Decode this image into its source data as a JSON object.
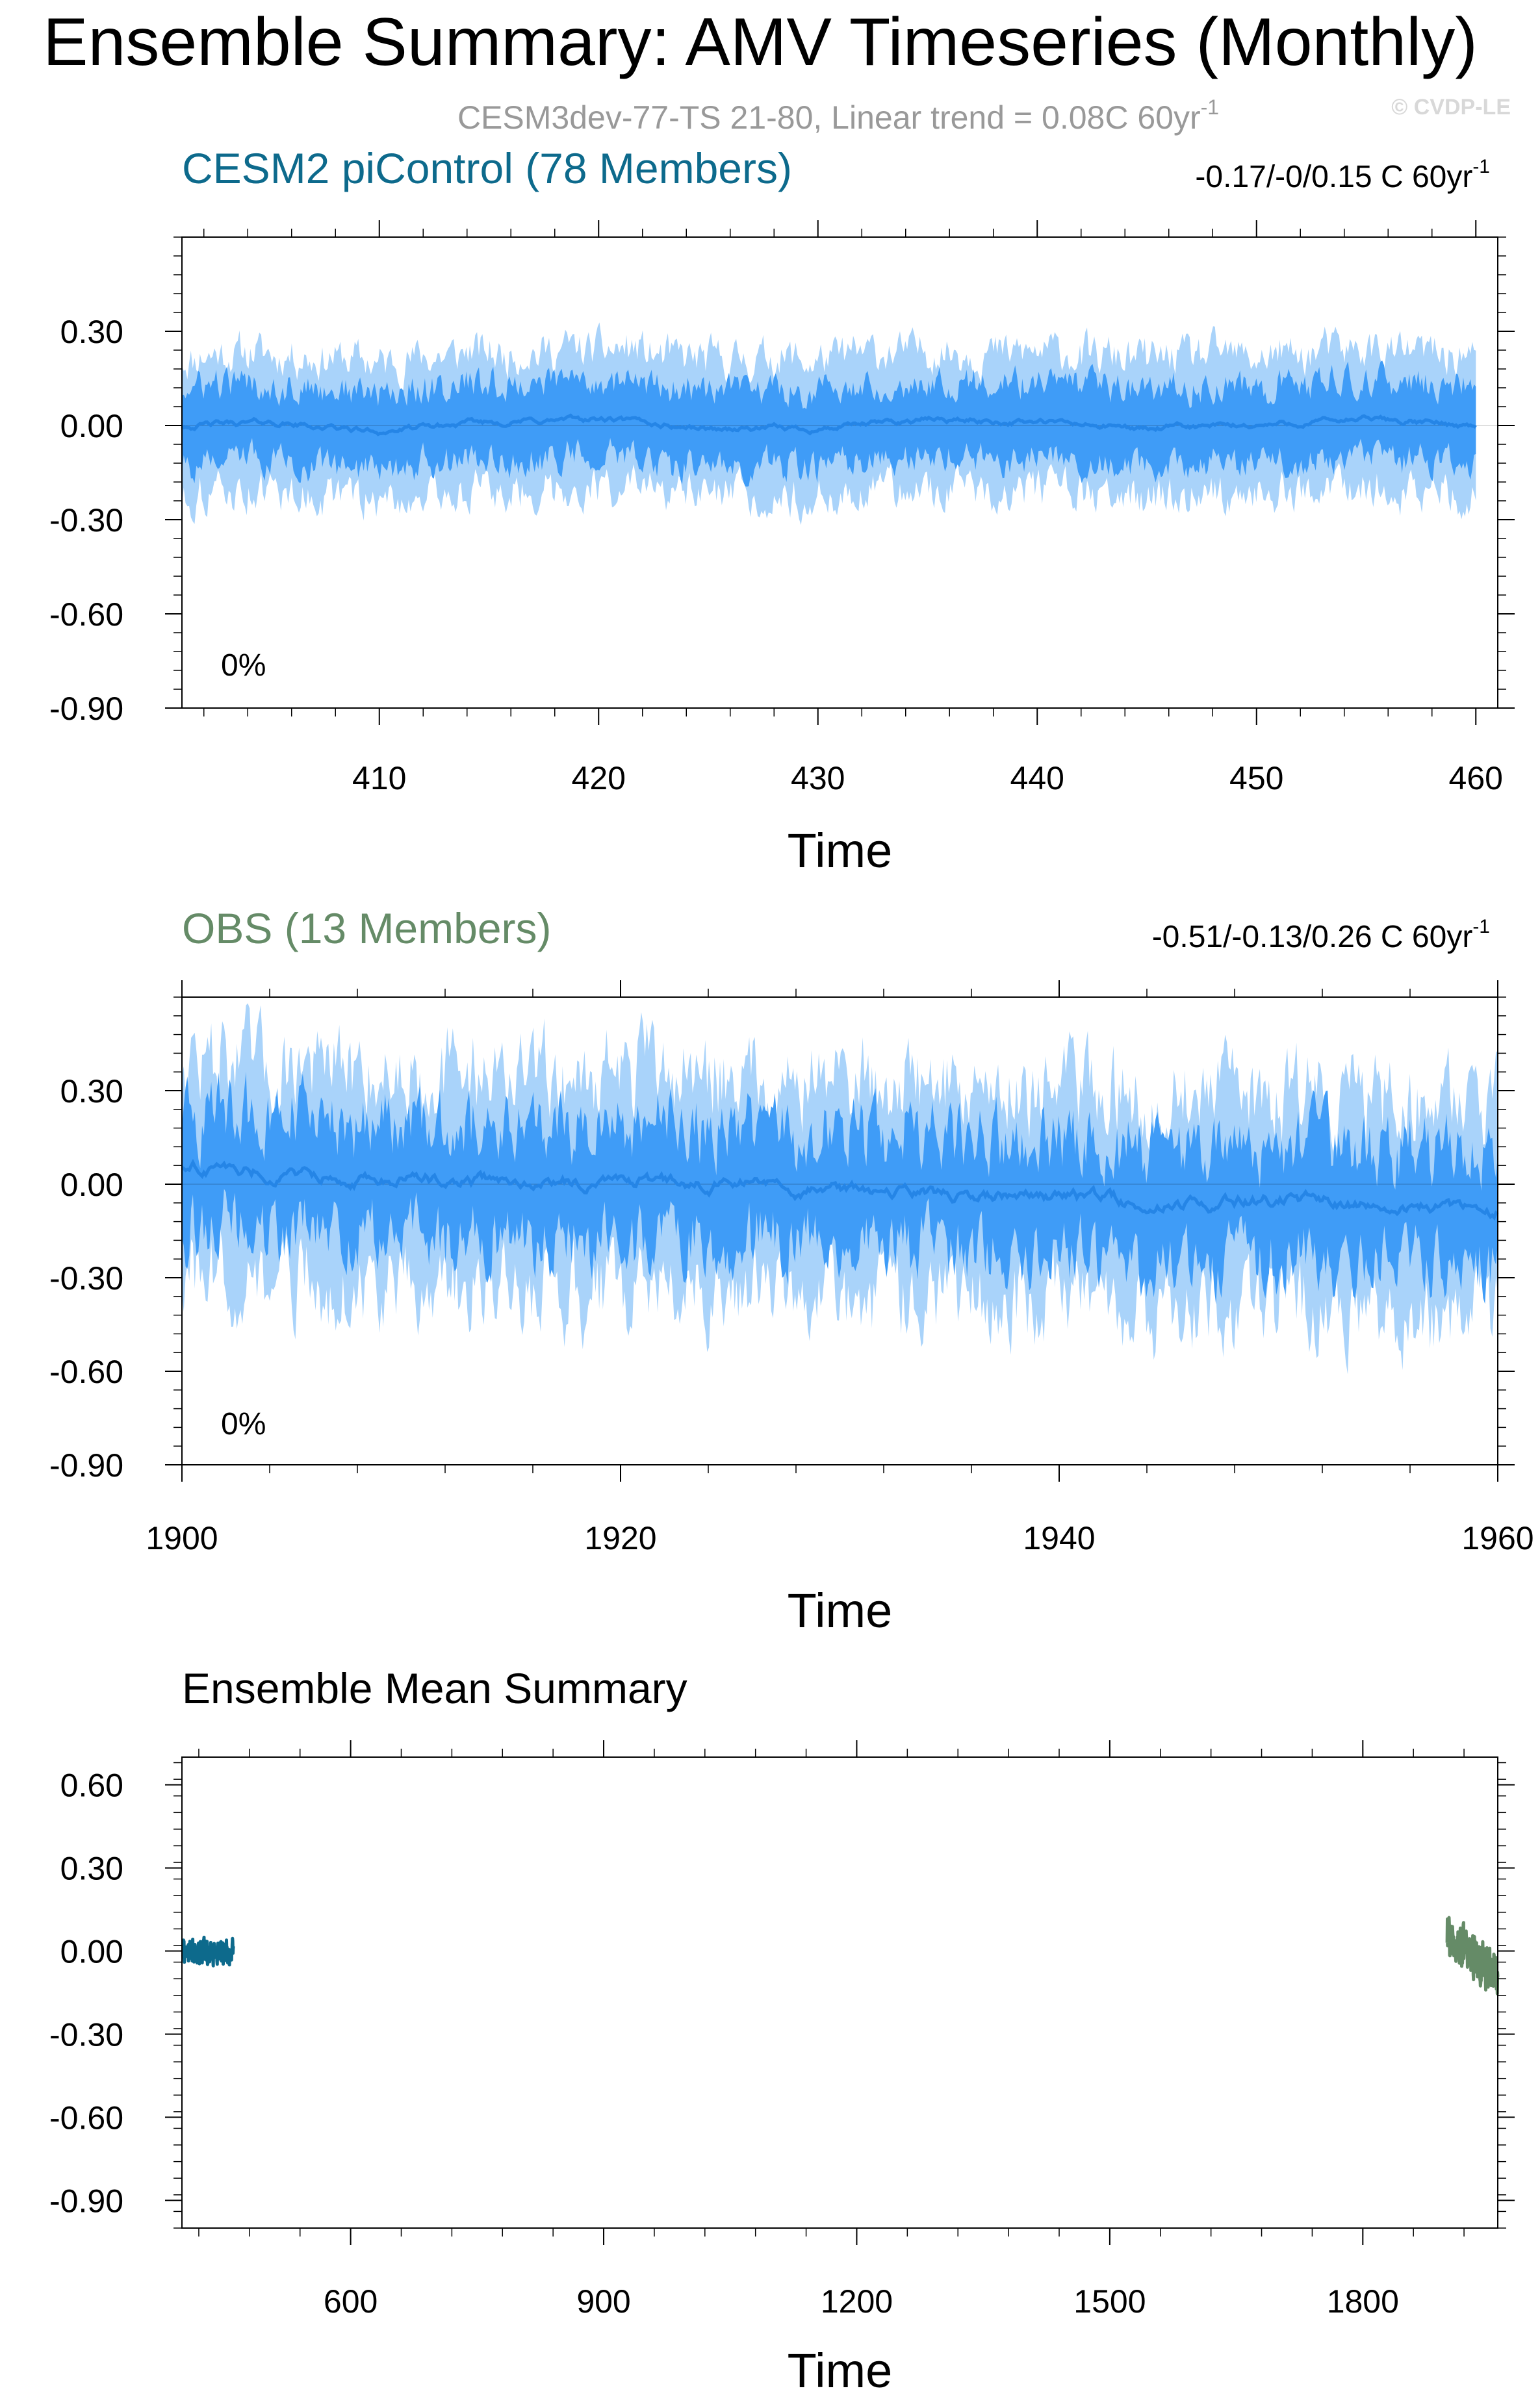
{
  "figure": {
    "title": "Ensemble Summary: AMV Timeseries (Monthly)",
    "subtitle": "CESM3dev-77-TS 21-80, Linear trend = 0.08C 60yr",
    "subtitle_sup": "-1",
    "watermark": "© CVDP-LE"
  },
  "colors": {
    "spread_outer": "#a9d3fa",
    "spread_inner": "#3f9cf7",
    "mean_line": "#2585e6",
    "picontrol_title": "#0d6a8c",
    "obs_title": "#658b67",
    "picontrol_mean": "#0d6a8c",
    "obs_mean": "#658b67",
    "axis": "#000000",
    "subtitle": "#999999",
    "watermark": "#d8d8d8"
  },
  "chart_data": [
    {
      "type": "area",
      "title": "CESM2 piControl (78 Members)",
      "trend_text": "-0.17/-0/0.15 C 60yr",
      "trend_sup": "-1",
      "percent_label": "0%",
      "xlabel": "Time",
      "ylabel": "",
      "xlim": [
        401,
        461
      ],
      "ylim": [
        -0.9,
        0.6
      ],
      "xticks": [
        410,
        420,
        430,
        440,
        450,
        460
      ],
      "xtick_labels": [
        "410",
        "420",
        "430",
        "440",
        "450",
        "460"
      ],
      "yticks": [
        0.3,
        0.0,
        -0.3,
        -0.6,
        -0.9
      ],
      "ytick_labels": [
        "0.30",
        "0.00",
        "-0.30",
        "-0.60",
        "-0.90"
      ],
      "series": [
        {
          "name": "",
          "role": "ensemble-mean",
          "x": [
            401,
            405,
            410,
            415,
            420,
            425,
            430,
            435,
            440,
            445,
            450,
            455,
            460
          ],
          "values": [
            0.0,
            0.01,
            -0.02,
            0.01,
            0.02,
            -0.01,
            -0.01,
            0.02,
            0.01,
            -0.01,
            0.0,
            0.02,
            0.0
          ]
        },
        {
          "name": "",
          "role": "inner-spread-upper",
          "x": [
            401,
            461
          ],
          "values": [
            0.12,
            0.12
          ]
        },
        {
          "name": "",
          "role": "inner-spread-lower",
          "x": [
            401,
            461
          ],
          "values": [
            -0.12,
            -0.12
          ]
        },
        {
          "name": "",
          "role": "outer-spread-upper",
          "x": [
            401,
            461
          ],
          "values": [
            0.22,
            0.22
          ]
        },
        {
          "name": "",
          "role": "outer-spread-lower",
          "x": [
            401,
            461
          ],
          "values": [
            -0.22,
            -0.22
          ]
        }
      ]
    },
    {
      "type": "area",
      "title": "OBS (13 Members)",
      "trend_text": "-0.51/-0.13/0.26 C 60yr",
      "trend_sup": "-1",
      "percent_label": "0%",
      "xlabel": "Time",
      "ylabel": "",
      "xlim": [
        1900,
        1960
      ],
      "ylim": [
        -0.9,
        0.6
      ],
      "xticks": [
        1900,
        1920,
        1940,
        1960
      ],
      "xtick_labels": [
        "1900",
        "1920",
        "1940",
        "1960"
      ],
      "yticks": [
        0.3,
        0.0,
        -0.3,
        -0.6,
        -0.9
      ],
      "ytick_labels": [
        "0.30",
        "0.00",
        "-0.30",
        "-0.60",
        "-0.90"
      ],
      "series": [
        {
          "name": "",
          "role": "ensemble-mean",
          "x": [
            1900,
            1905,
            1910,
            1915,
            1920,
            1925,
            1930,
            1935,
            1940,
            1945,
            1950,
            1955,
            1960
          ],
          "values": [
            0.06,
            0.03,
            0.02,
            0.0,
            0.02,
            0.0,
            -0.02,
            -0.03,
            -0.04,
            -0.06,
            -0.05,
            -0.07,
            -0.09
          ]
        },
        {
          "name": "",
          "role": "inner-spread-half-width",
          "x": [
            1900,
            1960
          ],
          "values": [
            0.18,
            0.18
          ]
        },
        {
          "name": "",
          "role": "outer-spread-half-width",
          "x": [
            1900,
            1960
          ],
          "values": [
            0.35,
            0.35
          ]
        }
      ]
    },
    {
      "type": "line",
      "title": "Ensemble Mean Summary",
      "xlabel": "Time",
      "ylabel": "",
      "xlim": [
        400,
        1960
      ],
      "ylim": [
        -1.0,
        0.7
      ],
      "xticks": [
        600,
        900,
        1200,
        1500,
        1800
      ],
      "xtick_labels": [
        "600",
        "900",
        "1200",
        "1500",
        "1800"
      ],
      "yticks": [
        0.6,
        0.3,
        0.0,
        -0.3,
        -0.6,
        -0.9
      ],
      "ytick_labels": [
        "0.60",
        "0.30",
        "0.00",
        "-0.30",
        "-0.60",
        "-0.90"
      ],
      "series": [
        {
          "name": "",
          "color_key": "picontrol_mean",
          "x": [
            401,
            461
          ],
          "values": [
            0.0,
            0.0
          ],
          "variability": 0.05
        },
        {
          "name": "",
          "color_key": "obs_mean",
          "x": [
            1900,
            1960
          ],
          "values": [
            0.06,
            -0.09
          ],
          "variability": 0.08
        }
      ]
    }
  ]
}
